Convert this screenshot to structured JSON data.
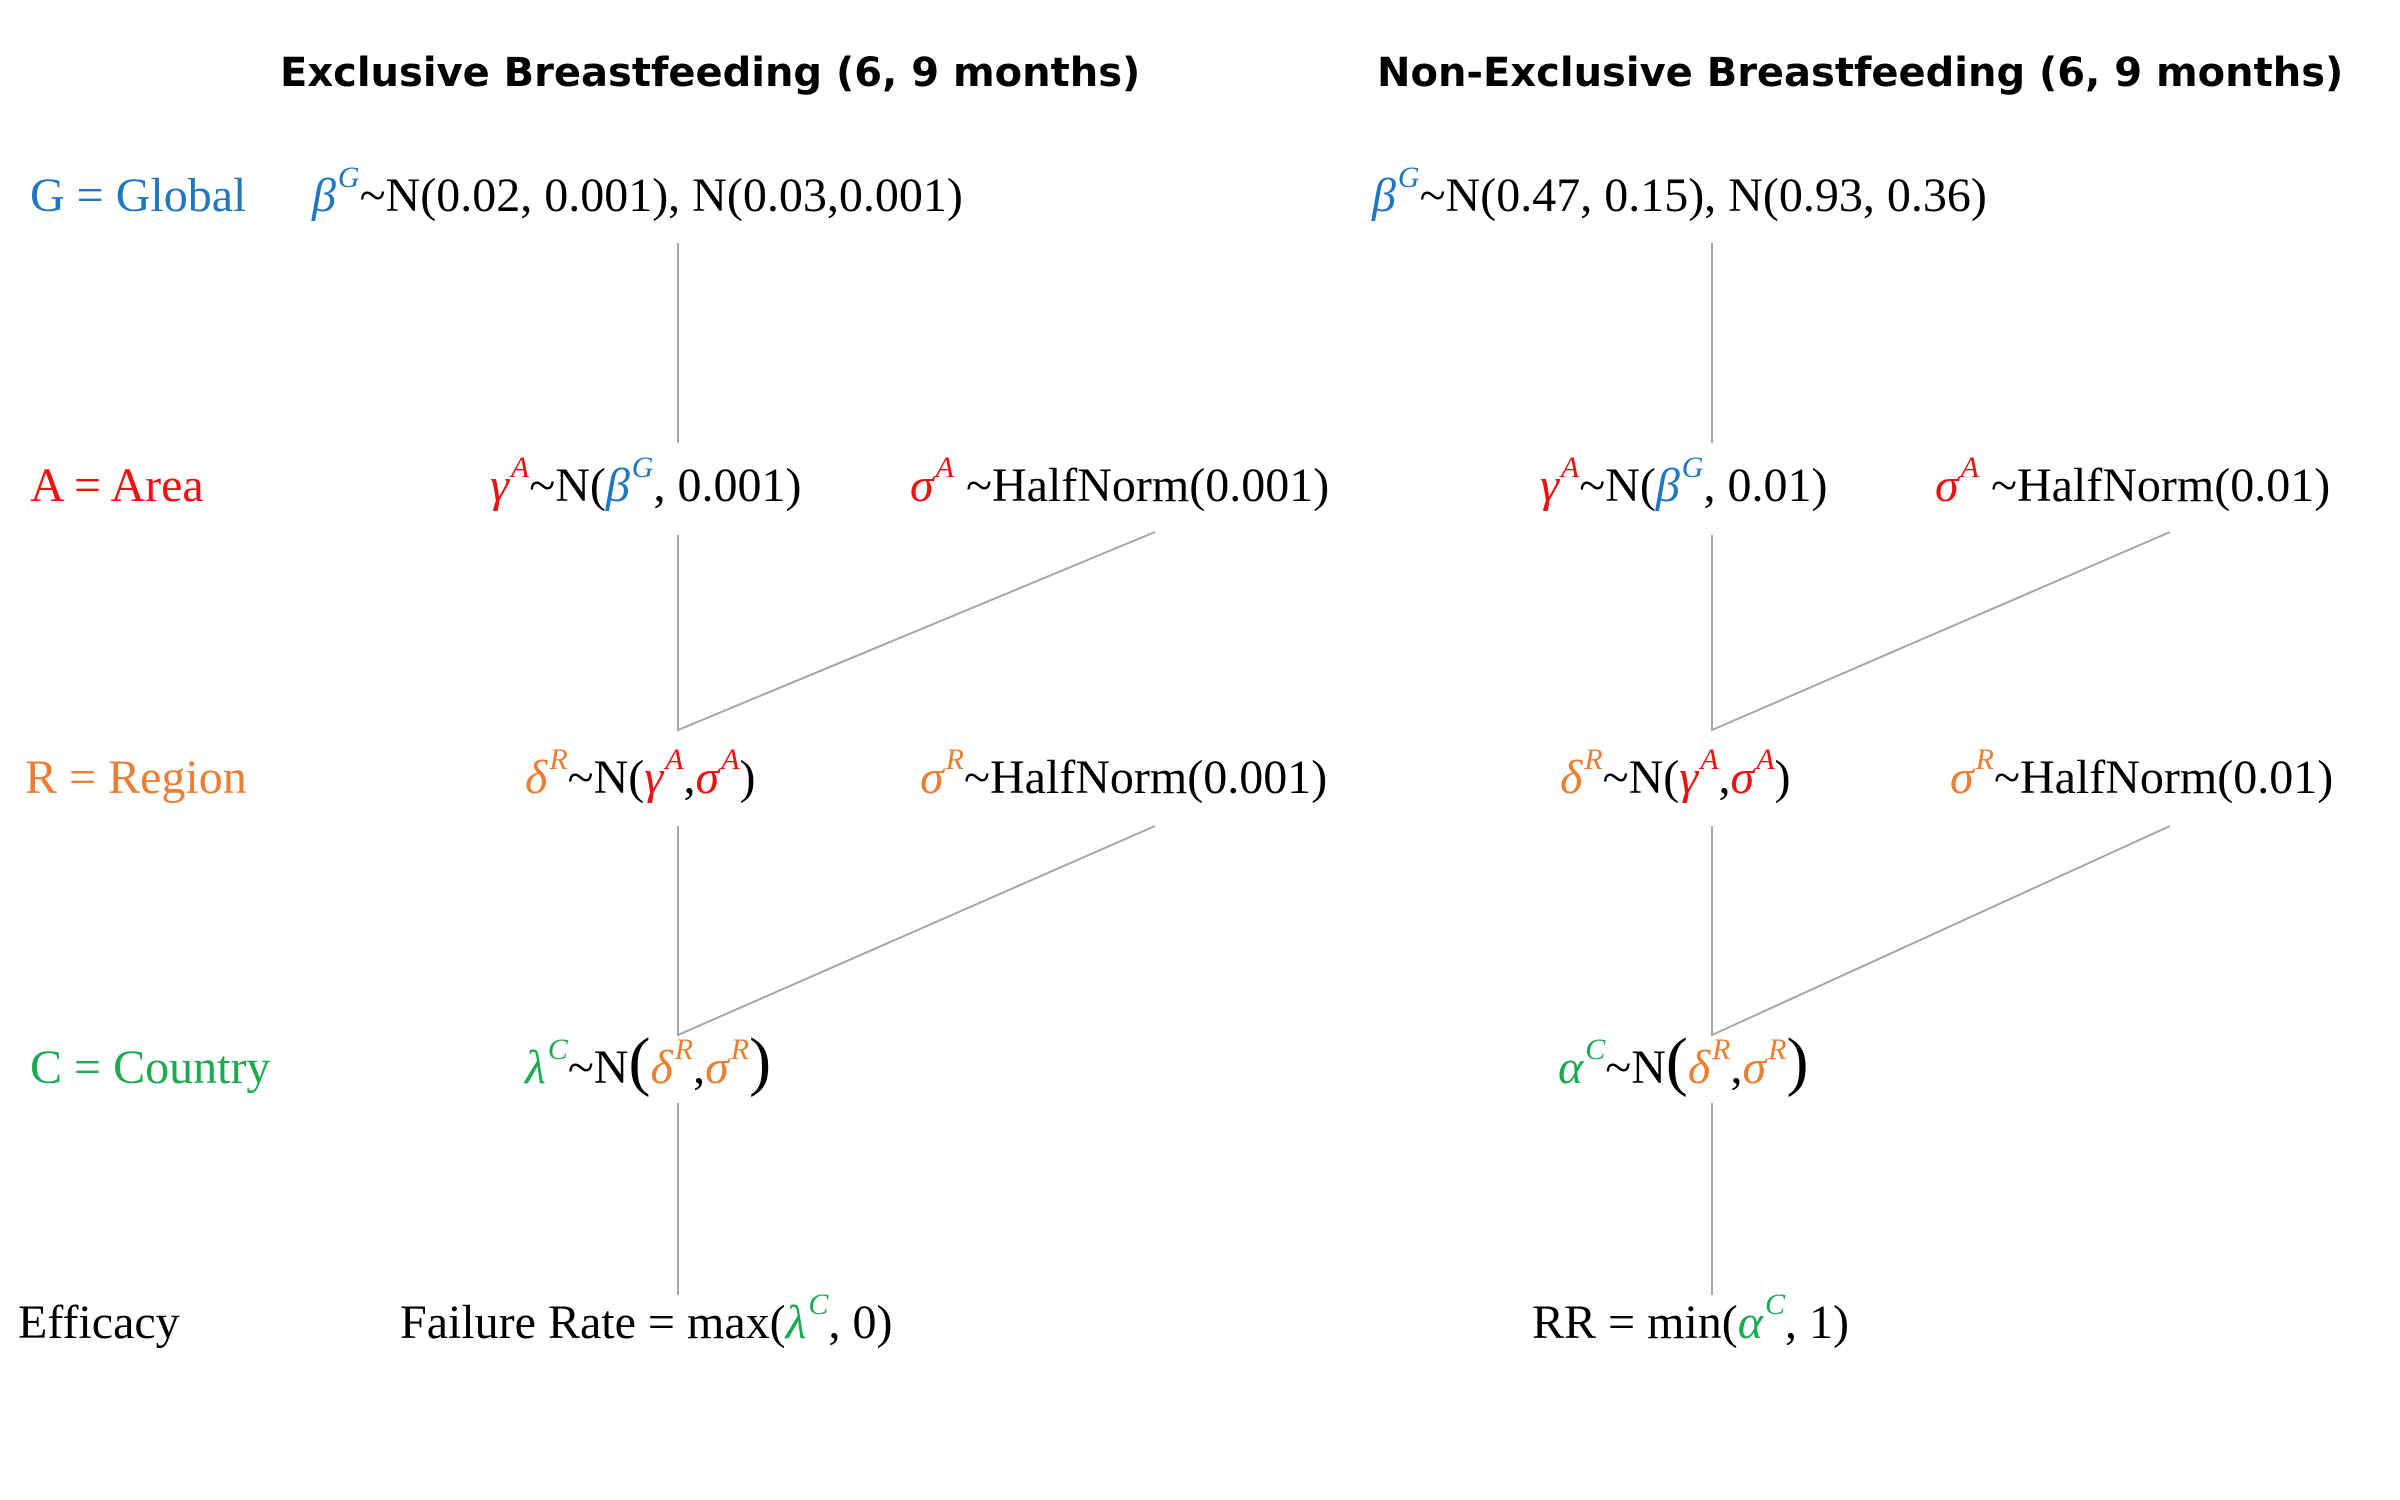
{
  "headings": {
    "exclusive": "Exclusive Breastfeeding (6, 9 months)",
    "non_exclusive": "Non-Exclusive Breastfeeding (6, 9 months)"
  },
  "levels": {
    "global": "G = Global",
    "area": "A = Area",
    "region": "R = Region",
    "country": "C = Country",
    "efficacy": "Efficacy"
  },
  "symbols": {
    "beta": "β",
    "gamma": "γ",
    "delta": "δ",
    "sigma": "σ",
    "lambda": "λ",
    "alpha": "α",
    "G": "G",
    "A": "A",
    "R": "R",
    "C": "C",
    "tilde": "~"
  },
  "exclusive": {
    "global_rest": "N(0.02, 0.001), N(0.03,0.001)",
    "area_open": "N(",
    "area_close": ", 0.001)",
    "area_sigma_rest": " ~HalfNorm(0.001)",
    "region_open": "N(",
    "region_comma": ",",
    "region_close": ")",
    "region_sigma_rest": "HalfNorm(0.001)",
    "country_open": "N",
    "country_comma": ",",
    "efficacy_lhs": "Failure Rate = max(",
    "efficacy_rhs": ", 0)"
  },
  "non_exclusive": {
    "global_rest": "N(0.47, 0.15), N(0.93, 0.36)",
    "area_open": "N(",
    "area_close": ", 0.01)",
    "area_sigma_rest": " ~HalfNorm(0.01)",
    "region_open": "N(",
    "region_comma": ",",
    "region_close": ")",
    "region_sigma_rest": "HalfNorm(0.01)",
    "country_open": "N",
    "country_comma": ",",
    "efficacy_lhs": "RR = min(",
    "efficacy_rhs": ", 1)"
  },
  "colors": {
    "global": "#1f77c4",
    "area": "#ee1111",
    "region": "#ed7d31",
    "country": "#1aab4e",
    "connector": "#a6a6a6"
  }
}
